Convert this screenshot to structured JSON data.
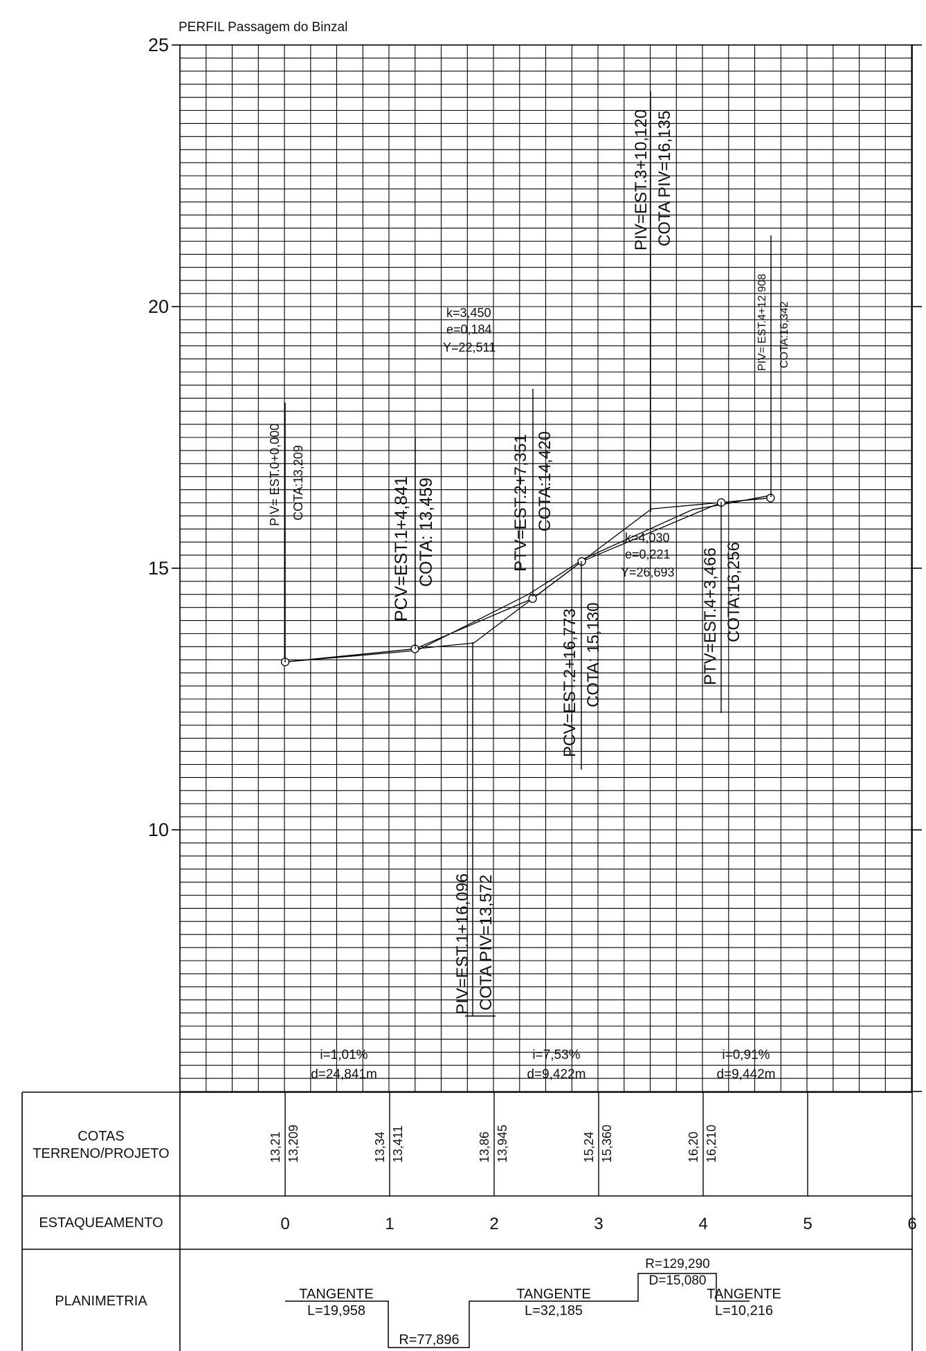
{
  "title": "PERFIL Passagem do Binzal",
  "y_ticks": [
    {
      "value": 25,
      "label": "25"
    },
    {
      "value": 20,
      "label": "20"
    },
    {
      "value": 15,
      "label": "15"
    },
    {
      "value": 10,
      "label": "10"
    }
  ],
  "right_tick_marks": [
    25,
    20,
    15,
    10,
    5
  ],
  "profile": {
    "vertices": [
      {
        "est": 0,
        "cota": 13.209
      },
      {
        "est": 1.242,
        "cota": 13.459
      },
      {
        "est": 2.368,
        "cota": 14.42
      },
      {
        "est": 2.839,
        "cota": 15.13
      },
      {
        "est": 4.173,
        "cota": 16.256
      },
      {
        "est": 4.645,
        "cota": 16.342
      }
    ],
    "piv_points": [
      {
        "est": 1.805,
        "cota": 13.572
      },
      {
        "est": 3.506,
        "cota": 16.135
      }
    ]
  },
  "annotations": {
    "piv0": [
      "PIV= EST.0+0,000",
      "COTA:13,209"
    ],
    "pcv1": [
      "PCV=EST.1+4,841",
      "COTA: 13,459"
    ],
    "piv1": [
      "PIV=EST.1+16,096",
      "COTA PIV=13,572"
    ],
    "ptv1": [
      "PTV=EST.2+7,351",
      "COTA:14,420"
    ],
    "pcv2": [
      "PCV=EST.2+16,773",
      "COTA: 15,130"
    ],
    "piv2": [
      "PIV=EST.3+10,120",
      "COTA PIV=16,135"
    ],
    "ptv2": [
      "PTV=EST.4+3,466",
      "COTA:16,256"
    ],
    "piv3": [
      "PIV= EST.4+12,908",
      "COTA:16,342"
    ]
  },
  "curves": [
    [
      "k=3,450",
      "e=0,184",
      "Y=22,511"
    ],
    [
      "k=4,030",
      "e=0,221",
      "Y=26,693"
    ]
  ],
  "gradients": [
    [
      "i=1,01%",
      "d=24,841m"
    ],
    [
      "i=7,53%",
      "d=9,422m"
    ],
    [
      "i=0,91%",
      "d=9,442m"
    ]
  ],
  "table": {
    "cotas_label": [
      "COTAS",
      "TERRENO/PROJETO"
    ],
    "estaqueamento_label": "ESTAQUEAMENTO",
    "planimetria_label": "PLANIMETRIA",
    "cotas": [
      {
        "est": 0,
        "terreno": "13,21",
        "projeto": "13,209"
      },
      {
        "est": 1,
        "terreno": "13,34",
        "projeto": "13,411"
      },
      {
        "est": 2,
        "terreno": "13,86",
        "projeto": "13,945"
      },
      {
        "est": 3,
        "terreno": "15,24",
        "projeto": "15,360"
      },
      {
        "est": 4,
        "terreno": "16,20",
        "projeto": "16,210"
      }
    ],
    "stations": [
      "0",
      "1",
      "2",
      "3",
      "4",
      "5",
      "6"
    ],
    "planimetria": {
      "tangente1": [
        "TANGENTE",
        "L=19,958"
      ],
      "curve1": "R=77,896",
      "tangente2": [
        "TANGENTE",
        "L=32,185"
      ],
      "curve2": [
        "R=129,290",
        "D=15,080"
      ],
      "tangente3": [
        "TANGENTE",
        "L=10,216"
      ]
    }
  }
}
